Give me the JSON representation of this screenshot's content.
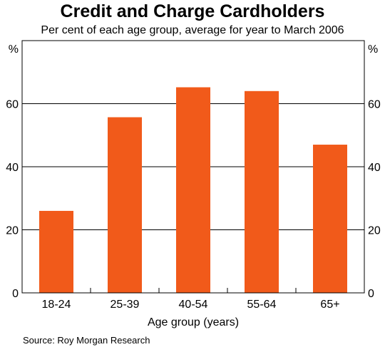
{
  "chart_data": {
    "type": "bar",
    "title": "Credit and Charge Cardholders",
    "subtitle": "Per cent of each age group, average for year to March 2006",
    "categories": [
      "18-24",
      "25-39",
      "40-54",
      "55-64",
      "65+"
    ],
    "values": [
      26,
      55.7,
      65.2,
      64,
      47
    ],
    "xlabel": "Age group (years)",
    "ylabel": "%",
    "ylabel_right": "%",
    "ylim": [
      0,
      80
    ],
    "yticks": [
      0,
      20,
      40,
      60
    ],
    "grid": true,
    "bar_color": "#f15a1a",
    "source": "Source: Roy Morgan Research"
  }
}
